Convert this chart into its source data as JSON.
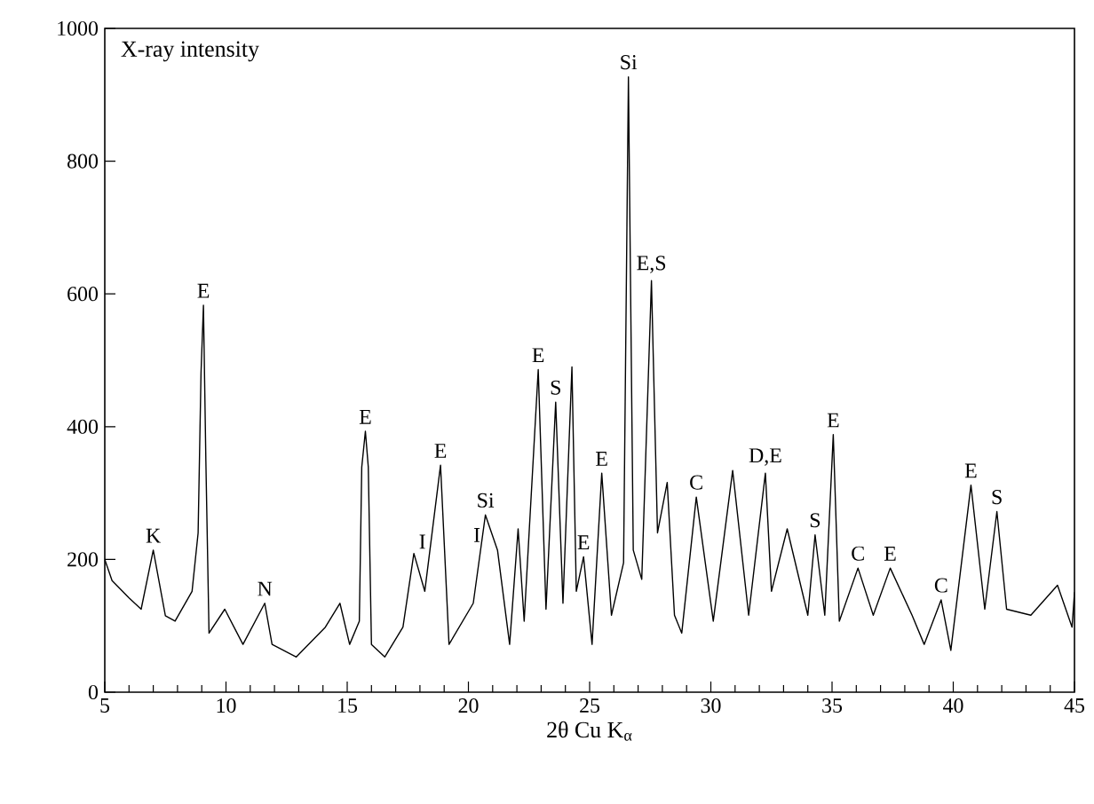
{
  "chart_data": {
    "type": "line",
    "ylabel": "X-ray intensity",
    "xlabel": "2θ Cu K$_{α}$",
    "xlim": [
      5,
      45
    ],
    "ylim": [
      0,
      1000
    ],
    "xticks": [
      5,
      10,
      15,
      20,
      25,
      30,
      35,
      40,
      45
    ],
    "yticks": [
      0,
      200,
      400,
      600,
      800,
      1000
    ],
    "grid": false,
    "marker": "none",
    "line_style": "solid",
    "series": [
      {
        "color": "#000000",
        "x": [
          5,
          5.3,
          6.0,
          6.5,
          7.0,
          7.5,
          7.9,
          8.6,
          8.85,
          8.97,
          9.07,
          9.17,
          9.3,
          9.95,
          10.7,
          11.6,
          11.9,
          12.9,
          14.1,
          14.7,
          15.1,
          15.5,
          15.6,
          15.75,
          15.87,
          16.0,
          16.55,
          17.3,
          17.75,
          18.2,
          18.85,
          19.2,
          20.2,
          20.7,
          21.2,
          21.7,
          22.05,
          22.3,
          22.88,
          23.2,
          23.6,
          23.9,
          24.27,
          24.45,
          24.75,
          25.1,
          25.5,
          25.9,
          26.4,
          26.6,
          26.8,
          27.15,
          27.55,
          27.8,
          28.2,
          28.5,
          28.8,
          29.4,
          30.1,
          30.9,
          31.56,
          32.25,
          32.5,
          33.15,
          34.0,
          34.3,
          34.7,
          35.05,
          35.3,
          36.07,
          36.7,
          37.4,
          38.3,
          38.8,
          39.5,
          39.9,
          40.73,
          41.3,
          41.8,
          42.2,
          43.2,
          44.3,
          44.9,
          45
        ],
        "values": [
          200,
          168,
          142,
          125,
          214,
          115,
          107,
          152,
          240,
          481,
          583,
          348,
          89,
          125,
          72,
          134,
          72,
          53,
          98,
          134,
          72,
          107,
          339,
          393,
          339,
          72,
          53,
          98,
          209,
          152,
          342,
          72,
          134,
          267,
          214,
          72,
          246,
          107,
          486,
          125,
          437,
          134,
          490,
          152,
          204,
          72,
          330,
          116,
          195,
          927,
          214,
          170,
          620,
          240,
          316,
          116,
          89,
          294,
          107,
          334,
          116,
          330,
          152,
          246,
          116,
          237,
          116,
          388,
          107,
          187,
          116,
          187,
          116,
          72,
          139,
          63,
          312,
          125,
          272,
          125,
          116,
          161,
          98,
          150
        ]
      }
    ],
    "annotations": [
      {
        "text": "K",
        "x": 7.0,
        "y": 214
      },
      {
        "text": "E",
        "x": 9.07,
        "y": 583
      },
      {
        "text": "N",
        "x": 11.6,
        "y": 134
      },
      {
        "text": "E",
        "x": 15.75,
        "y": 393
      },
      {
        "text": "I",
        "x": 18.1,
        "y": 205
      },
      {
        "text": "E",
        "x": 18.85,
        "y": 342
      },
      {
        "text": "I",
        "x": 20.35,
        "y": 215
      },
      {
        "text": "Si",
        "x": 20.7,
        "y": 267
      },
      {
        "text": "E",
        "x": 22.88,
        "y": 486
      },
      {
        "text": "S",
        "x": 23.6,
        "y": 437
      },
      {
        "text": "E",
        "x": 24.75,
        "y": 204
      },
      {
        "text": "E",
        "x": 25.5,
        "y": 330
      },
      {
        "text": "Si",
        "x": 26.6,
        "y": 927
      },
      {
        "text": "E,S",
        "x": 27.55,
        "y": 620
      },
      {
        "text": "C",
        "x": 29.4,
        "y": 294
      },
      {
        "text": "D,E",
        "x": 32.25,
        "y": 330
      },
      {
        "text": "S",
        "x": 34.3,
        "y": 237
      },
      {
        "text": "E",
        "x": 35.05,
        "y": 388
      },
      {
        "text": "C",
        "x": 36.07,
        "y": 187
      },
      {
        "text": "E",
        "x": 37.4,
        "y": 187
      },
      {
        "text": "C",
        "x": 39.5,
        "y": 139
      },
      {
        "text": "E",
        "x": 40.73,
        "y": 312
      },
      {
        "text": "S",
        "x": 41.8,
        "y": 272
      }
    ]
  }
}
